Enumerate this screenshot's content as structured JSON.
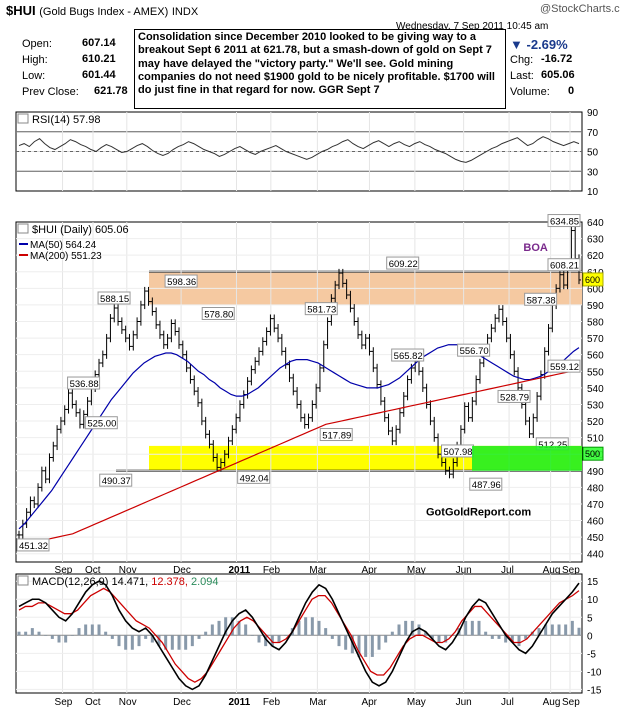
{
  "header": {
    "symbol": "$HUI",
    "name": "(Gold Bugs Index - AMEX)",
    "exchange": "INDX",
    "date_time": "Wednesday, 7 Sep 2011  10:45 am",
    "logo": "@StockCharts.com",
    "change_pct": "-2.69%",
    "change_label": "Chg:",
    "change": "-16.72",
    "last_label": "Last:",
    "last": "605.06",
    "volume_label": "Volume:",
    "volume": "0",
    "open_label": "Open:",
    "open": "607.14",
    "high_label": "High:",
    "high": "610.21",
    "low_label": "Low:",
    "low": "601.44",
    "prev_label": "Prev Close:",
    "prev": "621.78"
  },
  "annotation": "Consolidation since December 2010 looked to be giving way to a breakout Sept 6 2011 at 621.78, but a smash-down of gold on Sept 7 may have delayed the \"victory party.\"  We'll see.  Gold mining companies do not need $1900 gold to be nicely profitable.  $1700 will do just fine in that regard for now.  GGR Sept 7",
  "chart_data": [
    {
      "type": "line",
      "title": "RSI(14) 57.98",
      "ylim": [
        10,
        90
      ],
      "y_ticks": [
        10,
        30,
        50,
        70,
        90
      ],
      "reference_lines": [
        30,
        50,
        70
      ],
      "series": [
        {
          "name": "RSI(14)",
          "values": [
            56,
            58,
            55,
            60,
            63,
            58,
            54,
            52,
            55,
            58,
            62,
            60,
            57,
            55,
            52,
            50,
            54,
            57,
            55,
            52,
            49,
            50,
            53,
            56,
            58,
            55,
            51,
            48,
            46,
            48,
            52,
            55,
            57,
            60,
            58,
            55,
            52,
            50,
            48,
            45,
            47,
            50,
            53,
            55,
            52,
            49,
            47,
            50,
            52,
            54,
            56,
            53,
            50,
            48,
            46,
            44,
            42,
            44,
            47,
            50,
            52,
            55,
            57,
            60,
            62,
            58,
            55,
            53,
            56,
            59,
            61,
            58,
            55,
            58,
            60,
            57,
            55,
            58,
            60,
            57,
            55,
            52,
            50,
            48,
            45,
            42,
            40,
            39,
            41,
            44,
            47,
            50,
            53,
            55,
            58,
            60,
            62,
            64,
            60,
            56,
            58,
            62,
            65,
            63,
            60,
            58,
            56,
            58,
            60,
            58
          ]
        }
      ],
      "grid": true
    },
    {
      "type": "line",
      "title": "$HUI (Daily) 605.06",
      "ylim": [
        435,
        640
      ],
      "y_ticks": [
        440,
        450,
        460,
        470,
        480,
        490,
        500,
        510,
        520,
        530,
        540,
        550,
        560,
        570,
        580,
        590,
        600,
        610,
        620,
        630,
        640
      ],
      "x_labels": [
        "Sep",
        "Oct",
        "Nov",
        "Dec",
        "2011",
        "Feb",
        "Mar",
        "Apr",
        "May",
        "Jun",
        "Jul",
        "Aug",
        "Sep"
      ],
      "price_type": "ohlc_bars",
      "series": [
        {
          "name": "$HUI (Daily) 605.06",
          "values": [
            451.32,
            458,
            465,
            472,
            470,
            480,
            490,
            485,
            498,
            505,
            515,
            520,
            527,
            536.88,
            530,
            525,
            518,
            524,
            532,
            540,
            548,
            555,
            560,
            570,
            582,
            588.15,
            580,
            575,
            570,
            565,
            572,
            580,
            590,
            598.36,
            592,
            586,
            578,
            572,
            566,
            570,
            578.8,
            574,
            566,
            560,
            552,
            545,
            538,
            531,
            520,
            512,
            506,
            498,
            492.04,
            495,
            500,
            508,
            515,
            522,
            530,
            536,
            544,
            551,
            556,
            562,
            568,
            574,
            581.73,
            576,
            570,
            562,
            554,
            546,
            538,
            530,
            522,
            517.89,
            522,
            530,
            540,
            552,
            566,
            580,
            594,
            602,
            609.22,
            603,
            596,
            588,
            580,
            572,
            565.82,
            570,
            562,
            552,
            542,
            532,
            522,
            514,
            507.98,
            515,
            525,
            535,
            545,
            552,
            556.7,
            550,
            540,
            530,
            520,
            510,
            500,
            495,
            490,
            487.96,
            495,
            505,
            515,
            528.79,
            522,
            532,
            545,
            555,
            563,
            570,
            576,
            582,
            587.38,
            580,
            570,
            560,
            550,
            540,
            530,
            520,
            512.25,
            522,
            535,
            548,
            562,
            576,
            590,
            600,
            608.21,
            602,
            615,
            634.85,
            618,
            605.06
          ]
        },
        {
          "name": "MA(50) 564.24",
          "values": [
            455,
            458,
            462,
            466,
            470,
            474,
            478,
            483,
            488,
            493,
            498,
            503,
            508,
            513,
            518,
            523,
            528,
            533,
            537,
            541,
            545,
            549,
            552,
            555,
            557,
            559,
            560,
            561,
            561,
            560,
            558,
            556,
            553,
            550,
            548,
            545,
            543,
            540,
            538,
            536,
            535,
            535,
            536,
            538,
            540,
            543,
            546,
            549,
            552,
            554,
            556,
            557,
            557,
            557,
            556,
            555,
            553,
            551,
            549,
            547,
            545,
            543,
            542,
            541,
            540,
            540,
            540,
            541,
            542,
            544,
            546,
            549,
            552,
            555,
            558,
            560,
            562,
            564,
            565,
            566,
            566,
            566,
            565,
            563,
            561,
            559,
            557,
            555,
            553,
            551,
            549,
            547,
            546,
            545,
            545,
            546,
            547,
            549,
            551,
            553,
            556,
            559,
            562,
            564.24
          ]
        },
        {
          "name": "MA(200) 551.23",
          "values": [
            445,
            446,
            447,
            448,
            449,
            450,
            451,
            452,
            454,
            456,
            458,
            460,
            462,
            464,
            466,
            468,
            470,
            472,
            474,
            476,
            478,
            480,
            482,
            484,
            486,
            488,
            490,
            492,
            494,
            496,
            498,
            500,
            502,
            504,
            506,
            508,
            510,
            512,
            514,
            516,
            518,
            519,
            520,
            521,
            522,
            523,
            524,
            525,
            526,
            527,
            528,
            529,
            530,
            531,
            532,
            533,
            534,
            535,
            536,
            537,
            538,
            539,
            540,
            541,
            542,
            543,
            544,
            545,
            546,
            547,
            548,
            549,
            550,
            551.23
          ]
        }
      ],
      "annotations": [
        {
          "text": "451.32",
          "x": 0.006,
          "y": 451.32
        },
        {
          "text": "536.88",
          "x": 0.122,
          "y": 536.88
        },
        {
          "text": "525.00",
          "x": 0.154,
          "y": 525.0
        },
        {
          "text": "588.15",
          "x": 0.177,
          "y": 588.15
        },
        {
          "text": "490.37",
          "x": 0.18,
          "y": 490.37
        },
        {
          "text": "598.36",
          "x": 0.298,
          "y": 598.36
        },
        {
          "text": "578.80",
          "x": 0.365,
          "y": 578.8
        },
        {
          "text": "492.04",
          "x": 0.429,
          "y": 492.04
        },
        {
          "text": "581.73",
          "x": 0.551,
          "y": 581.73
        },
        {
          "text": "517.89",
          "x": 0.578,
          "y": 517.89
        },
        {
          "text": "609.22",
          "x": 0.698,
          "y": 609.22
        },
        {
          "text": "565.82",
          "x": 0.707,
          "y": 565.82
        },
        {
          "text": "507.98",
          "x": 0.797,
          "y": 507.98
        },
        {
          "text": "556.70",
          "x": 0.826,
          "y": 556.7
        },
        {
          "text": "487.96",
          "x": 0.848,
          "y": 487.96
        },
        {
          "text": "528.79",
          "x": 0.899,
          "y": 528.79
        },
        {
          "text": "587.38",
          "x": 0.947,
          "y": 587.38
        },
        {
          "text": "512.25",
          "x": 0.968,
          "y": 512.25
        },
        {
          "text": "608.21",
          "x": 0.996,
          "y": 608.21
        },
        {
          "text": "559.12",
          "x": 1.0,
          "y": 559.12
        },
        {
          "text": "634.85",
          "x": 1.0,
          "y": 634.85
        },
        {
          "text": "BOA",
          "x": 0.97,
          "y": 625
        }
      ],
      "zones": [
        {
          "name": "resistance",
          "from": 590,
          "to": 610,
          "color": "#f5c9a1"
        },
        {
          "name": "support",
          "from": 490,
          "to": 505,
          "color": "#ffff00"
        }
      ],
      "watermark": "GotGoldReport.com",
      "resistance_level": 610,
      "support_level": 490,
      "colors": {
        "price": "#000000",
        "ma50": "#0000aa",
        "ma200": "#cc0000",
        "price_tag": "#ffff99"
      }
    },
    {
      "type": "line",
      "title": "MACD(12,26,9) 14.471, 12.378, 2.094",
      "ylim": [
        -16,
        17
      ],
      "y_ticks": [
        -15,
        -10,
        -5,
        0,
        5,
        10,
        15
      ],
      "x_labels": [
        "Sep",
        "Oct",
        "Nov",
        "Dec",
        "2011",
        "Feb",
        "Mar",
        "Apr",
        "May",
        "Jun",
        "Jul",
        "Aug",
        "Sep"
      ],
      "series": [
        {
          "name": "MACD(12,26,9) 14.471",
          "values": [
            8,
            9,
            10,
            10,
            9,
            7,
            5,
            4,
            6,
            9,
            12,
            14,
            15,
            14,
            11,
            7,
            4,
            2,
            1,
            2,
            0,
            -3,
            -6,
            -9,
            -12,
            -14,
            -15,
            -14,
            -11,
            -7,
            -3,
            1,
            4,
            6,
            7,
            5,
            2,
            -1,
            -3,
            -4,
            -2,
            1,
            5,
            9,
            12,
            14,
            13,
            10,
            6,
            2,
            -2,
            -6,
            -10,
            -13,
            -14,
            -13,
            -10,
            -6,
            -2,
            1,
            2,
            1,
            -1,
            -3,
            -4,
            -2,
            1,
            5,
            8,
            10,
            9,
            6,
            3,
            0,
            -2,
            -4,
            -5,
            -3,
            0,
            3,
            6,
            8,
            10,
            12,
            14.471
          ]
        },
        {
          "name": "12.378",
          "values": [
            7,
            8,
            8,
            9,
            9,
            8,
            7,
            6,
            6,
            7,
            9,
            11,
            12,
            13,
            12,
            10,
            8,
            6,
            4,
            3,
            2,
            0,
            -2,
            -5,
            -8,
            -10,
            -12,
            -13,
            -12,
            -10,
            -7,
            -4,
            -1,
            2,
            4,
            5,
            4,
            2,
            0,
            -2,
            -2,
            -1,
            1,
            4,
            7,
            10,
            11,
            11,
            9,
            6,
            3,
            0,
            -4,
            -7,
            -10,
            -11,
            -11,
            -9,
            -6,
            -3,
            -1,
            0,
            0,
            -1,
            -2,
            -2,
            -1,
            1,
            4,
            6,
            8,
            8,
            6,
            4,
            2,
            0,
            -2,
            -2,
            -1,
            1,
            3,
            5,
            7,
            9,
            10,
            11,
            12.378
          ]
        },
        {
          "name": "2.094",
          "values": [
            1,
            1,
            2,
            1,
            0,
            -1,
            -2,
            -2,
            0,
            2,
            3,
            3,
            3,
            1,
            -1,
            -3,
            -4,
            -4,
            -3,
            -1,
            -2,
            -3,
            -4,
            -4,
            -4,
            -4,
            -3,
            -1,
            1,
            3,
            4,
            5,
            5,
            4,
            3,
            0,
            -2,
            -3,
            -3,
            -2,
            0,
            2,
            4,
            5,
            5,
            4,
            2,
            -1,
            -3,
            -4,
            -5,
            -6,
            -6,
            -6,
            -4,
            -2,
            1,
            3,
            4,
            4,
            3,
            1,
            -1,
            -2,
            -2,
            0,
            2,
            4,
            4,
            4,
            1,
            -1,
            -1,
            -2,
            -2,
            -3,
            -1,
            1,
            2,
            3,
            3,
            3,
            3,
            4,
            2.094
          ]
        }
      ],
      "colors": {
        "macd": "#000000",
        "signal": "#cc0000",
        "histogram": "#8899aa"
      }
    }
  ],
  "axis": {
    "x_labels": [
      "Sep",
      "Oct",
      "Nov",
      "Dec",
      "2011",
      "Feb",
      "Mar",
      "Apr",
      "May",
      "Jun",
      "Jul",
      "Aug",
      "Sep"
    ]
  }
}
